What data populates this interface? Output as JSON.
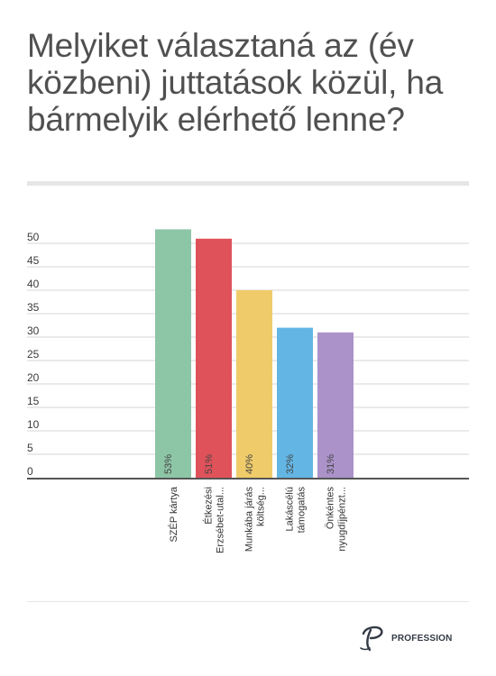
{
  "title": "Melyiket választaná az (év közbeni) juttatások közül, ha bármelyik elérhető lenne?",
  "brand": {
    "name": "PROFESSION",
    "color": "#333a44"
  },
  "chart_data": {
    "type": "bar",
    "title": "Melyiket választaná az (év közbeni) juttatások közül, ha bármelyik elérhető lenne?",
    "categories": [
      [
        "SZÉP kártya"
      ],
      [
        "Étkezési",
        "Erzsébet-utal..."
      ],
      [
        "Munkába járás",
        "költség..."
      ],
      [
        "Lakáscélú",
        "támogatás"
      ],
      [
        "Önkéntes",
        "nyugdíjpénzt..."
      ]
    ],
    "values": [
      53,
      51,
      40,
      32,
      31
    ],
    "data_labels": [
      "53%",
      "51%",
      "40%",
      "32%",
      "31%"
    ],
    "colors": [
      "#8dc6a6",
      "#e0525a",
      "#efcb6a",
      "#63b6e4",
      "#ab92c9"
    ],
    "yticks": [
      0,
      5,
      10,
      15,
      20,
      25,
      30,
      35,
      40,
      45,
      50
    ],
    "ylim": [
      0,
      53
    ],
    "grid": true,
    "xlabel": "",
    "ylabel": ""
  }
}
